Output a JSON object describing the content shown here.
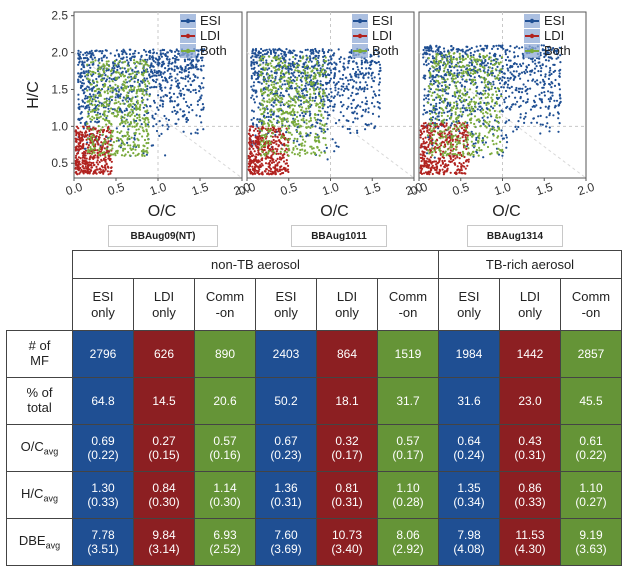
{
  "chart_data": [
    {
      "type": "scatter",
      "xlabel": "O/C",
      "ylabel": "H/C",
      "xticks": [
        "0.0",
        "0.5",
        "1.0",
        "1.5",
        "2.0"
      ],
      "yticks": [
        "0.5",
        "1.0",
        "1.5",
        "2.0",
        "2.5"
      ],
      "xlim": [
        0,
        2
      ],
      "ylim": [
        0.3,
        2.55
      ],
      "legend": {
        "position": "top-right",
        "entries": [
          "ESI",
          "LDI",
          "Both"
        ]
      },
      "colors": {
        "ESI": "#1f4f93",
        "LDI": "#b1221f",
        "Both": "#7aab3c"
      },
      "series": [
        {
          "name": "ESI",
          "region": {
            "x": [
              0.05,
              1.55
            ],
            "y": [
              0.55,
              2.05
            ]
          }
        },
        {
          "name": "LDI",
          "region": {
            "x": [
              0.02,
              0.45
            ],
            "y": [
              0.35,
              1.0
            ]
          }
        },
        {
          "name": "Both",
          "region": {
            "x": [
              0.15,
              0.9
            ],
            "y": [
              0.6,
              1.9
            ]
          }
        }
      ],
      "panel_label": "BBAug09(NT)"
    },
    {
      "type": "scatter",
      "xlabel": "O/C",
      "ylabel": "",
      "xticks": [
        "0.0",
        "0.5",
        "1.0",
        "1.5",
        "2.0"
      ],
      "yticks": [],
      "xlim": [
        0,
        2
      ],
      "ylim": [
        0.3,
        2.55
      ],
      "legend": {
        "position": "top-right",
        "entries": [
          "ESI",
          "LDI",
          "Both"
        ]
      },
      "colors": {
        "ESI": "#1f4f93",
        "LDI": "#b1221f",
        "Both": "#7aab3c"
      },
      "series": [
        {
          "name": "ESI",
          "region": {
            "x": [
              0.05,
              1.6
            ],
            "y": [
              0.55,
              2.05
            ]
          }
        },
        {
          "name": "LDI",
          "region": {
            "x": [
              0.02,
              0.5
            ],
            "y": [
              0.35,
              1.0
            ]
          }
        },
        {
          "name": "Both",
          "region": {
            "x": [
              0.15,
              0.95
            ],
            "y": [
              0.6,
              1.95
            ]
          }
        }
      ],
      "panel_label": "BBAug1011"
    },
    {
      "type": "scatter",
      "xlabel": "O/C",
      "ylabel": "",
      "xticks": [
        "0.0",
        "0.5",
        "1.0",
        "1.5",
        "2.0"
      ],
      "yticks": [],
      "xlim": [
        0,
        2
      ],
      "ylim": [
        0.3,
        2.55
      ],
      "legend": {
        "position": "top-right",
        "entries": [
          "ESI",
          "LDI",
          "Both"
        ]
      },
      "colors": {
        "ESI": "#1f4f93",
        "LDI": "#b1221f",
        "Both": "#7aab3c"
      },
      "series": [
        {
          "name": "ESI",
          "region": {
            "x": [
              0.05,
              1.7
            ],
            "y": [
              0.55,
              2.1
            ]
          }
        },
        {
          "name": "LDI",
          "region": {
            "x": [
              0.02,
              0.6
            ],
            "y": [
              0.35,
              1.05
            ]
          }
        },
        {
          "name": "Both",
          "region": {
            "x": [
              0.1,
              1.0
            ],
            "y": [
              0.6,
              2.0
            ]
          }
        }
      ],
      "panel_label": "BBAug1314"
    }
  ],
  "table": {
    "group_headers": [
      "non-TB aerosol",
      "TB-rich aerosol"
    ],
    "col_headers": [
      "ESI\nonly",
      "LDI\nonly",
      "Comm\n-on",
      "ESI\nonly",
      "LDI\nonly",
      "Comm\n-on",
      "ESI\nonly",
      "LDI\nonly",
      "Comm\n-on"
    ],
    "col_types": [
      "esi",
      "ldi",
      "both",
      "esi",
      "ldi",
      "both",
      "esi",
      "ldi",
      "both"
    ],
    "rows": [
      {
        "label": "# of\nMF",
        "label_main": "",
        "label_sub": "",
        "cells": [
          "2796",
          "626",
          "890",
          "2403",
          "864",
          "1519",
          "1984",
          "1442",
          "2857"
        ]
      },
      {
        "label": "% of\ntotal",
        "label_main": "",
        "label_sub": "",
        "cells": [
          "64.8",
          "14.5",
          "20.6",
          "50.2",
          "18.1",
          "31.7",
          "31.6",
          "23.0",
          "45.5"
        ]
      },
      {
        "label": "",
        "label_main": "O/C",
        "label_sub": "avg",
        "cells": [
          "0.69\n(0.22)",
          "0.27\n(0.15)",
          "0.57\n(0.16)",
          "0.67\n(0.23)",
          "0.32\n(0.17)",
          "0.57\n(0.17)",
          "0.64\n(0.24)",
          "0.43\n(0.31)",
          "0.61\n(0.22)"
        ]
      },
      {
        "label": "",
        "label_main": "H/C",
        "label_sub": "avg",
        "cells": [
          "1.30\n(0.33)",
          "0.84\n(0.30)",
          "1.14\n(0.30)",
          "1.36\n(0.31)",
          "0.81\n(0.31)",
          "1.10\n(0.28)",
          "1.35\n(0.34)",
          "0.86\n(0.33)",
          "1.10\n(0.27)"
        ]
      },
      {
        "label": "",
        "label_main": "DBE",
        "label_sub": "avg",
        "cells": [
          "7.78\n(3.51)",
          "9.84\n(3.14)",
          "6.93\n(2.52)",
          "7.60\n(3.69)",
          "10.73\n(3.40)",
          "8.06\n(2.92)",
          "7.98\n(4.08)",
          "11.53\n(4.30)",
          "9.19\n(3.63)"
        ]
      }
    ]
  }
}
